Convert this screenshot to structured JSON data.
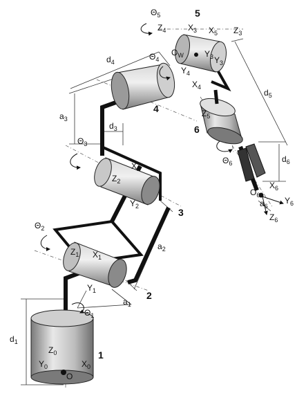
{
  "joints": [
    {
      "id": "1",
      "angle_main": "Θ",
      "angle_sub": "1"
    },
    {
      "id": "2",
      "angle_main": "Θ",
      "angle_sub": "2"
    },
    {
      "id": "3",
      "angle_main": "Θ",
      "angle_sub": "3"
    },
    {
      "id": "4",
      "angle_main": "Θ",
      "angle_sub": "4"
    },
    {
      "id": "5",
      "angle_main": "Θ",
      "angle_sub": "5"
    },
    {
      "id": "6",
      "angle_main": "Θ",
      "angle_sub": "6"
    }
  ],
  "params": {
    "d1": {
      "main": "d",
      "sub": "1"
    },
    "a1": {
      "main": "a",
      "sub": "1"
    },
    "a2": {
      "main": "a",
      "sub": "2"
    },
    "a3": {
      "main": "a",
      "sub": "3"
    },
    "d3": {
      "main": "d",
      "sub": "3"
    },
    "d4": {
      "main": "d",
      "sub": "4"
    },
    "d5": {
      "main": "d",
      "sub": "5"
    },
    "d6": {
      "main": "d",
      "sub": "6"
    },
    "a6": {
      "main": "a",
      "sub": "6"
    }
  },
  "frames": {
    "z0": {
      "main": "Z",
      "sub": "0"
    },
    "y0": {
      "main": "Y",
      "sub": "0"
    },
    "x0": {
      "main": "X",
      "sub": "0"
    },
    "o0": "O",
    "z1": {
      "main": "Z",
      "sub": "1"
    },
    "x1": {
      "main": "X",
      "sub": "1"
    },
    "y1": {
      "main": "Y",
      "sub": "1"
    },
    "z2": {
      "main": "Z",
      "sub": "2"
    },
    "x2": {
      "main": "X",
      "sub": "2"
    },
    "y2": {
      "main": "Y",
      "sub": "2"
    },
    "z3": {
      "main": "Z",
      "sub": "3"
    },
    "x3": {
      "main": "X",
      "sub": "3"
    },
    "y3": {
      "main": "Y",
      "sub": "3"
    },
    "z4": {
      "main": "Z",
      "sub": "4"
    },
    "x4": {
      "main": "X",
      "sub": "4"
    },
    "y4": {
      "main": "Y",
      "sub": "4"
    },
    "z5": {
      "main": "Z",
      "sub": "5"
    },
    "x5": {
      "main": "X",
      "sub": "5"
    },
    "x6": {
      "main": "X",
      "sub": "6"
    },
    "y6": {
      "main": "Y",
      "sub": "6"
    },
    "z6": {
      "main": "Z",
      "sub": "6"
    },
    "ow": {
      "main": "O",
      "sub": "W"
    },
    "o6": {
      "main": "O",
      "sub": "6"
    }
  },
  "colors": {
    "link": "#111111",
    "body_light": "#e6e6e6",
    "body_dark": "#8c8c8c",
    "line": "#333333"
  }
}
